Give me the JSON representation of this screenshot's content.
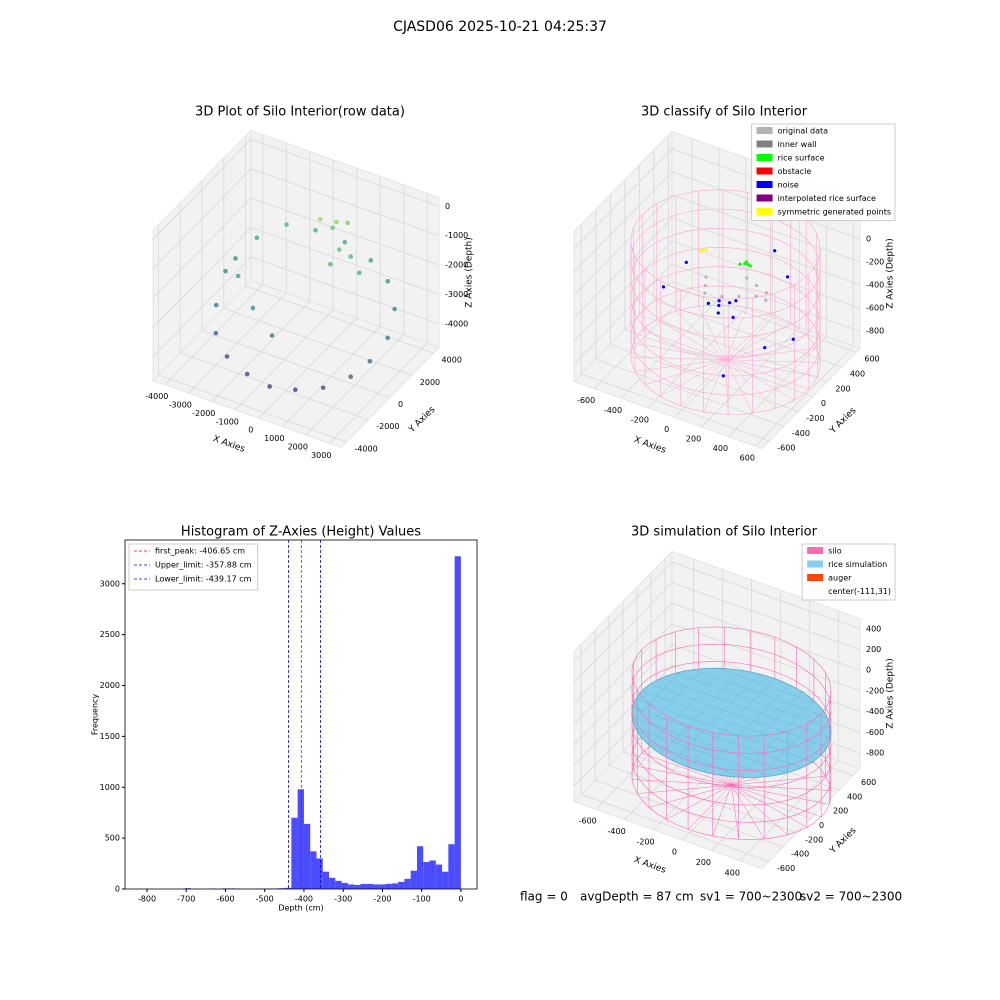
{
  "title": "CJASD06 2025-10-21 04:25:37",
  "footer": [
    "flag = 0",
    "avgDepth = 87 cm",
    "sv1 = 700~2300",
    "sv2 = 700~2300"
  ],
  "chart_data": [
    {
      "type": "scatter3d",
      "title": "3D Plot of Silo Interior(row data)",
      "xlabel": "X Axies",
      "ylabel": "Y Axies",
      "zlabel": "Z Axies (Depth)",
      "xlim": [
        -4500,
        3500
      ],
      "ylim": [
        -4500,
        4500
      ],
      "zlim": [
        -4800,
        300
      ],
      "xticks": [
        -4000,
        -3000,
        -2000,
        -1000,
        0,
        1000,
        2000,
        3000
      ],
      "yticks": [
        -4000,
        -2000,
        0,
        2000,
        4000
      ],
      "zticks": [
        0,
        -1000,
        -2000,
        -3000,
        -4000
      ],
      "colormap": "viridis",
      "points": {
        "x": [
          -3500,
          -3200,
          -2800,
          -2000,
          -1000,
          0,
          1000,
          2000,
          2800,
          3200,
          3400,
          3000,
          2200,
          1200,
          0,
          -1200,
          -2200,
          -3000,
          -3400,
          -2500,
          -1500,
          -500,
          500,
          1500,
          -300,
          200,
          600,
          900,
          -100,
          400
        ],
        "y": [
          0,
          -1500,
          -2400,
          -3100,
          -3400,
          -3500,
          -3300,
          -2900,
          -2100,
          -1200,
          0,
          1500,
          2600,
          3200,
          3400,
          3300,
          2800,
          1800,
          700,
          -1000,
          -1800,
          -2200,
          1000,
          1500,
          1800,
          2200,
          1600,
          2000,
          2500,
          2800
        ],
        "z": [
          -2500,
          -3000,
          -3500,
          -3800,
          -4000,
          -4100,
          -4000,
          -3800,
          -3500,
          -3200,
          -2800,
          -2500,
          -2200,
          -2000,
          -1800,
          -1700,
          -1600,
          -1900,
          -2300,
          -2000,
          -2500,
          -3000,
          -1500,
          -1700,
          -500,
          -600,
          -1200,
          -1500,
          -1000,
          -800
        ]
      }
    },
    {
      "type": "scatter3d",
      "title": "3D classify of Silo Interior",
      "xlabel": "X Axies",
      "ylabel": "Y Axies",
      "zlabel": "Z Axies (Depth)",
      "xlim": [
        -750,
        650
      ],
      "ylim": [
        -700,
        650
      ],
      "zlim": [
        -950,
        350
      ],
      "xticks": [
        -600,
        -400,
        -200,
        0,
        200,
        400,
        600
      ],
      "yticks": [
        -600,
        -400,
        -200,
        0,
        200,
        400,
        600
      ],
      "zticks": [
        200,
        0,
        -200,
        -400,
        -600,
        -800
      ],
      "legend": "upper right",
      "wireframe_color": "#ffa6d2",
      "silo_radius": 620,
      "silo_zlim": [
        -900,
        100
      ],
      "series": [
        {
          "name": "original data",
          "color": "#b3b3b3",
          "x": [
            -100,
            0,
            100,
            200,
            -200,
            150,
            -50,
            250,
            50,
            -150,
            300
          ],
          "y": [
            -100,
            -50,
            0,
            50,
            100,
            150,
            -150,
            100,
            200,
            0,
            0
          ],
          "z": [
            -300,
            -320,
            -310,
            -300,
            -330,
            -290,
            -340,
            -280,
            -300,
            -320,
            -260
          ]
        },
        {
          "name": "inner wall",
          "color": "#808080",
          "x": [],
          "y": [],
          "z": []
        },
        {
          "name": "rice surface",
          "color": "#00ff00",
          "x": [
            0,
            30,
            60,
            20,
            50
          ],
          "y": [
            200,
            210,
            230,
            250,
            220
          ],
          "z": [
            -200,
            -190,
            -210,
            -205,
            -195
          ]
        },
        {
          "name": "obstacle",
          "color": "#ff0000",
          "x": [],
          "y": [],
          "z": []
        },
        {
          "name": "noise",
          "color": "#0000ff",
          "x": [
            -100,
            -50,
            0,
            50,
            100,
            -80,
            20,
            300,
            400,
            -400,
            450,
            200,
            -300,
            150
          ],
          "y": [
            -50,
            0,
            -100,
            50,
            -80,
            60,
            20,
            300,
            -200,
            200,
            100,
            -400,
            -300,
            400
          ],
          "z": [
            -420,
            -450,
            -430,
            -400,
            -440,
            -460,
            -410,
            -250,
            -500,
            -350,
            -600,
            -700,
            -200,
            -150
          ]
        },
        {
          "name": "interpolated rice surface",
          "color": "#800080",
          "x": [],
          "y": [],
          "z": []
        },
        {
          "name": "symmetric generated points",
          "color": "#ffff00",
          "x": [
            -250,
            -230,
            -260
          ],
          "y": [
            150,
            160,
            140
          ],
          "z": [
            -150,
            -145,
            -155
          ]
        }
      ]
    },
    {
      "type": "histogram",
      "title": "Histogram of Z-Axies (Height) Values",
      "xlabel": "Depth (cm)",
      "ylabel": "Frequency",
      "xlim": [
        -856,
        41
      ],
      "ylim": [
        0,
        3430
      ],
      "xticks": [
        -800,
        -700,
        -600,
        -500,
        -400,
        -300,
        -200,
        -100,
        0
      ],
      "yticks": [
        0,
        500,
        1000,
        1500,
        2000,
        2500,
        3000
      ],
      "color": "#0000ff",
      "legend": "upper left",
      "bins": [
        -720,
        -704,
        -688,
        -672,
        -656,
        -640,
        -624,
        -608,
        -592,
        -576,
        -560,
        -544,
        -528,
        -512,
        -496,
        -480,
        -464,
        -448,
        -432,
        -416,
        -400,
        -384,
        -368,
        -352,
        -336,
        -320,
        -304,
        -288,
        -272,
        -256,
        -240,
        -224,
        -208,
        -192,
        -176,
        -160,
        -144,
        -128,
        -112,
        -96,
        -80,
        -64,
        -48,
        -32,
        -16,
        0
      ],
      "counts": [
        0,
        8,
        0,
        0,
        0,
        5,
        0,
        6,
        6,
        5,
        0,
        0,
        3,
        3,
        4,
        5,
        8,
        12,
        700,
        980,
        640,
        370,
        300,
        170,
        110,
        80,
        60,
        45,
        40,
        50,
        50,
        45,
        45,
        50,
        55,
        70,
        100,
        180,
        420,
        265,
        280,
        240,
        170,
        440,
        3270
      ],
      "lines": [
        {
          "name": "first_peak: -406.65 cm",
          "value": -406.65,
          "color": "#ff0000"
        },
        {
          "name": "Upper_limit: -357.88 cm",
          "value": -357.88,
          "color": "#0000ff"
        },
        {
          "name": "Lower_limit: -439.17 cm",
          "value": -439.17,
          "color": "#0000ff"
        }
      ]
    },
    {
      "type": "surface3d",
      "title": "3D simulation of Silo Interior",
      "xlabel": "X Axies",
      "ylabel": "Y Axies",
      "zlabel": "Z Axies (Depth)",
      "xlim": [
        -750,
        550
      ],
      "ylim": [
        -700,
        700
      ],
      "zlim": [
        -950,
        500
      ],
      "xticks": [
        -600,
        -400,
        -200,
        0,
        200,
        400
      ],
      "yticks": [
        -600,
        -400,
        -200,
        0,
        200,
        400,
        600
      ],
      "zticks": [
        400,
        200,
        0,
        -200,
        -400,
        -600,
        -800
      ],
      "legend": "upper right",
      "silo_radius": 620,
      "silo_zlim": [
        -900,
        100
      ],
      "rice_z": -300,
      "series": [
        {
          "name": "silo",
          "color": "#ff69b4"
        },
        {
          "name": "rice simulation",
          "color": "#87ceeb"
        },
        {
          "name": "auger",
          "color": "#ff4500"
        },
        {
          "name": "center(-111,31)"
        }
      ]
    }
  ]
}
